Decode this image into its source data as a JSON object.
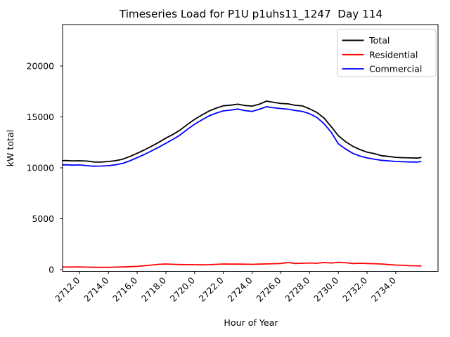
{
  "chart_data": {
    "type": "line",
    "title": "Timeseries Load for P1U p1uhs11_1247  Day 114",
    "xlabel": "Hour of Year",
    "ylabel": "kW total",
    "grid": false,
    "legend_position": "upper right",
    "xlim": [
      2710.81,
      2736.94
    ],
    "ylim": [
      -172,
      24069
    ],
    "xticks": {
      "values": [
        2712,
        2714,
        2716,
        2718,
        2720,
        2722,
        2724,
        2726,
        2728,
        2730,
        2732,
        2734
      ],
      "labels": [
        "2712.0",
        "2714.0",
        "2716.0",
        "2718.0",
        "2720.0",
        "2722.0",
        "2724.0",
        "2726.0",
        "2728.0",
        "2730.0",
        "2732.0",
        "2734.0"
      ]
    },
    "yticks": {
      "values": [
        0,
        5000,
        10000,
        15000,
        20000
      ],
      "labels": [
        "0",
        "5000",
        "10000",
        "15000",
        "20000"
      ]
    },
    "x": [
      2710.8,
      2711.0,
      2711.5,
      2712.0,
      2712.5,
      2713.0,
      2713.5,
      2714.0,
      2714.5,
      2715.0,
      2715.5,
      2716.0,
      2716.5,
      2717.0,
      2717.5,
      2718.0,
      2718.5,
      2719.0,
      2719.5,
      2720.0,
      2720.5,
      2721.0,
      2721.5,
      2722.0,
      2722.5,
      2723.0,
      2723.5,
      2724.0,
      2724.5,
      2725.0,
      2725.5,
      2726.0,
      2726.5,
      2727.0,
      2727.5,
      2728.0,
      2728.5,
      2729.0,
      2729.5,
      2730.0,
      2730.5,
      2731.0,
      2731.5,
      2732.0,
      2732.5,
      2733.0,
      2733.5,
      2734.0,
      2734.5,
      2735.0,
      2735.5,
      2735.75
    ],
    "series": [
      {
        "name": "Total",
        "color": "#000000",
        "values": [
          10700,
          10720,
          10680,
          10690,
          10660,
          10575,
          10560,
          10620,
          10700,
          10850,
          11120,
          11430,
          11760,
          12120,
          12500,
          12920,
          13290,
          13720,
          14260,
          14760,
          15180,
          15570,
          15860,
          16090,
          16150,
          16250,
          16120,
          16060,
          16250,
          16550,
          16430,
          16320,
          16280,
          16140,
          16080,
          15790,
          15440,
          14900,
          14050,
          13150,
          12570,
          12120,
          11790,
          11540,
          11390,
          11190,
          11120,
          11030,
          10990,
          10970,
          10950,
          11010
        ]
      },
      {
        "name": "Residential",
        "color": "#ff0000",
        "values": [
          260,
          250,
          255,
          270,
          240,
          230,
          220,
          220,
          240,
          260,
          290,
          320,
          380,
          450,
          520,
          550,
          520,
          500,
          490,
          480,
          470,
          480,
          520,
          550,
          540,
          540,
          530,
          520,
          540,
          560,
          580,
          600,
          700,
          600,
          620,
          650,
          620,
          700,
          650,
          720,
          680,
          600,
          620,
          600,
          580,
          550,
          500,
          450,
          420,
          380,
          370,
          360
        ]
      },
      {
        "name": "Commercial",
        "color": "#0000ff",
        "values": [
          10290,
          10300,
          10260,
          10280,
          10210,
          10160,
          10170,
          10210,
          10300,
          10440,
          10690,
          10990,
          11310,
          11660,
          12020,
          12410,
          12800,
          13240,
          13780,
          14280,
          14700,
          15100,
          15370,
          15590,
          15660,
          15770,
          15620,
          15540,
          15750,
          16000,
          15900,
          15820,
          15760,
          15630,
          15540,
          15310,
          14950,
          14350,
          13500,
          12350,
          11850,
          11430,
          11160,
          10970,
          10850,
          10740,
          10680,
          10620,
          10590,
          10570,
          10560,
          10620
        ]
      }
    ]
  }
}
